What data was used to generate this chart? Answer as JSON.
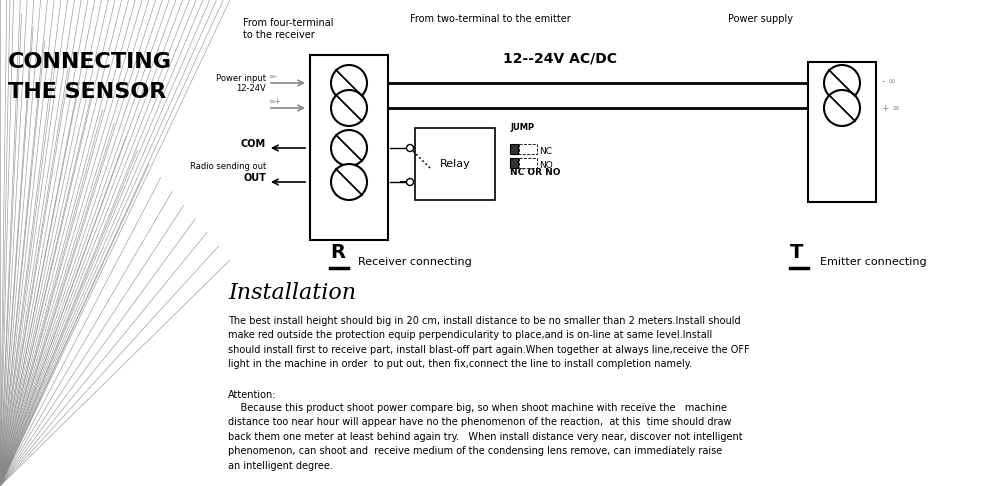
{
  "bg_color": "#ffffff",
  "title_line1": "CONNECTING",
  "title_line2": "THE SENSOR",
  "header_left": "From four-terminal\nto the receiver",
  "header_mid": "From two-terminal to the emitter",
  "header_right": "Power supply",
  "voltage_label": "12--24V AC/DC",
  "power_input_label": "Power input\n12-24V",
  "com_label": "COM",
  "radio_label": "Radio sending out",
  "out_label": "OUT",
  "jump_label": "JUMP",
  "nc_label": "NC",
  "no_label": "NO",
  "nc_or_no_label": "NC OR NO",
  "relay_label": "Relay",
  "r_label": "R",
  "r_sub": "Receiver connecting",
  "t_label": "T",
  "t_sub": "Emitter connecting",
  "install_title": "Installation",
  "install_text1": "The best install height should big in 20 cm, install distance to be no smaller than 2 meters.Install should\nmake red outside the protection equip perpendicularity to place,and is on-line at same level.Install\nshould install first to receive part, install blast-off part again.When together at always line,receive the OFF\nlight in the machine in order  to put out, then fix,connect the line to install completion namely.",
  "attention_title": "Attention:",
  "attention_text": "    Because this product shoot power compare big, so when shoot machine with receive the   machine\ndistance too near hour will appear have no the phenomenon of the reaction,  at this  time should draw\nback them one meter at least behind again try.   When install distance very near, discover not intelligent\nphenomenon, can shoot and  receive medium of the condensing lens remove, can immediately raise\nan intelligent degree.",
  "ray_color": "#888888",
  "line_color": "#000000"
}
